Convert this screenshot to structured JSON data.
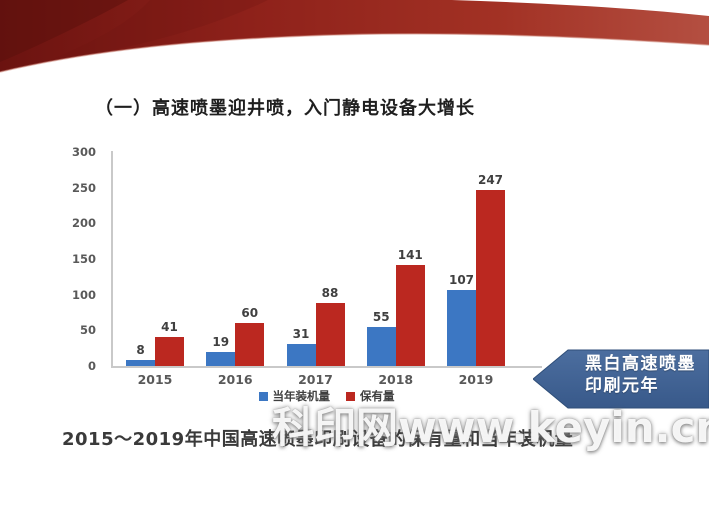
{
  "slide": {
    "title": "（一）高速喷墨迎井喷，入门静电设备大增长",
    "caption": "2015～2019年中国高速喷墨印刷设备的保有量和当年装机量",
    "watermark": "科印网www.keyin.cn"
  },
  "callout": {
    "line1": "黑白高速喷墨",
    "line2": "印刷元年",
    "color": "#3d6191"
  },
  "chart_data": {
    "type": "bar",
    "categories": [
      "2015",
      "2016",
      "2017",
      "2018",
      "2019"
    ],
    "series": [
      {
        "name": "当年装机量",
        "color": "#3c77c3",
        "values": [
          8,
          19,
          31,
          55,
          107
        ]
      },
      {
        "name": "保有量",
        "color": "#bb2820",
        "values": [
          41,
          60,
          88,
          141,
          247
        ]
      }
    ],
    "title": "",
    "xlabel": "",
    "ylabel": "",
    "ylim": [
      0,
      300
    ],
    "ytick_step": 50,
    "grid": false,
    "legend_position": "bottom",
    "value_labels": true
  },
  "colors": {
    "bar_blue": "#3c77c3",
    "bar_red": "#bb2820",
    "ribbon_dark": "#6b1310",
    "ribbon_mid": "#8e211a",
    "ribbon_light": "#b44f41",
    "callout_blue_top": "#4c6e9f",
    "callout_blue_bottom": "#38598a",
    "axis_text": "#595959",
    "value_label_text": "#404040"
  }
}
